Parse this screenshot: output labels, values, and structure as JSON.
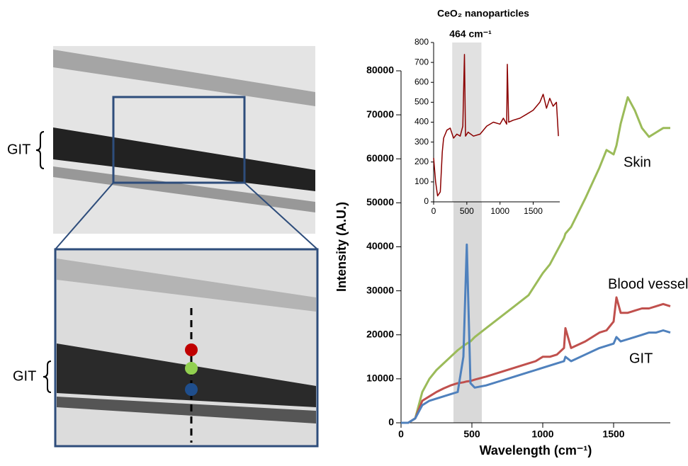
{
  "image_labels": [
    "GIT",
    "GIT"
  ],
  "chart_data": [
    {
      "type": "line",
      "x_label": "Wavelength (cm⁻¹)",
      "y_label": "Intensity (A.U.)",
      "xlim": [
        0,
        1900
      ],
      "xticks": [
        0,
        500,
        1000,
        1500
      ],
      "ylim": [
        0,
        80000
      ],
      "yticks": [
        0,
        10000,
        20000,
        30000,
        40000,
        50000,
        60000,
        70000,
        80000
      ],
      "highlight_range": [
        370,
        570
      ],
      "x": [
        0,
        50,
        100,
        150,
        200,
        250,
        300,
        350,
        400,
        440,
        464,
        490,
        520,
        600,
        700,
        800,
        900,
        950,
        1000,
        1050,
        1100,
        1150,
        1160,
        1200,
        1300,
        1400,
        1450,
        1500,
        1520,
        1550,
        1600,
        1650,
        1700,
        1750,
        1800,
        1850,
        1900
      ],
      "series": [
        {
          "name": "Skin",
          "color": "#9bbb59",
          "values": [
            0,
            0,
            1000,
            7000,
            10000,
            12000,
            13500,
            15000,
            16500,
            17500,
            18000,
            18500,
            19500,
            21500,
            24000,
            26500,
            29000,
            31500,
            34000,
            36000,
            39000,
            42000,
            43000,
            44500,
            51000,
            58000,
            62000,
            61000,
            63000,
            68000,
            74000,
            71000,
            67000,
            65000,
            66000,
            67000,
            67000
          ]
        },
        {
          "name": "Blood vessel",
          "color": "#c0504d",
          "values": [
            0,
            0,
            1000,
            5000,
            6000,
            7000,
            7800,
            8500,
            9000,
            9200,
            9400,
            9500,
            9800,
            10500,
            11500,
            12500,
            13500,
            14000,
            15000,
            15000,
            15500,
            17000,
            21500,
            17000,
            18500,
            20500,
            21000,
            23000,
            28500,
            25000,
            25000,
            25500,
            26000,
            26000,
            26500,
            27000,
            26500
          ]
        },
        {
          "name": "GIT",
          "color": "#4f81bd",
          "values": [
            0,
            0,
            1000,
            4000,
            5000,
            5500,
            6000,
            6500,
            7000,
            15000,
            40500,
            9000,
            8000,
            8500,
            9500,
            10500,
            11500,
            12000,
            12500,
            13000,
            13500,
            14000,
            15000,
            14000,
            15500,
            17000,
            17500,
            18000,
            19500,
            18500,
            19000,
            19500,
            20000,
            20500,
            20500,
            21000,
            20500
          ]
        }
      ]
    },
    {
      "type": "line",
      "title": "CeO₂ nanoparticles",
      "annotation": "464 cm⁻¹",
      "xlim": [
        0,
        1900
      ],
      "xticks": [
        0,
        500,
        1000,
        1500
      ],
      "ylim": [
        0,
        800
      ],
      "yticks": [
        0,
        100,
        200,
        300,
        400,
        500,
        600,
        700,
        800
      ],
      "highlight_range": [
        280,
        720
      ],
      "x": [
        0,
        30,
        60,
        100,
        130,
        150,
        200,
        250,
        300,
        350,
        400,
        440,
        464,
        480,
        520,
        600,
        700,
        800,
        900,
        1000,
        1050,
        1100,
        1110,
        1130,
        1200,
        1300,
        1400,
        1500,
        1600,
        1650,
        1700,
        1750,
        1800,
        1850,
        1880
      ],
      "series": [
        {
          "color": "#8b0000",
          "values": [
            220,
            100,
            30,
            50,
            250,
            320,
            360,
            370,
            320,
            340,
            330,
            380,
            740,
            330,
            350,
            330,
            340,
            380,
            400,
            390,
            420,
            390,
            690,
            400,
            410,
            420,
            440,
            460,
            500,
            540,
            470,
            520,
            480,
            500,
            330
          ]
        }
      ]
    }
  ]
}
